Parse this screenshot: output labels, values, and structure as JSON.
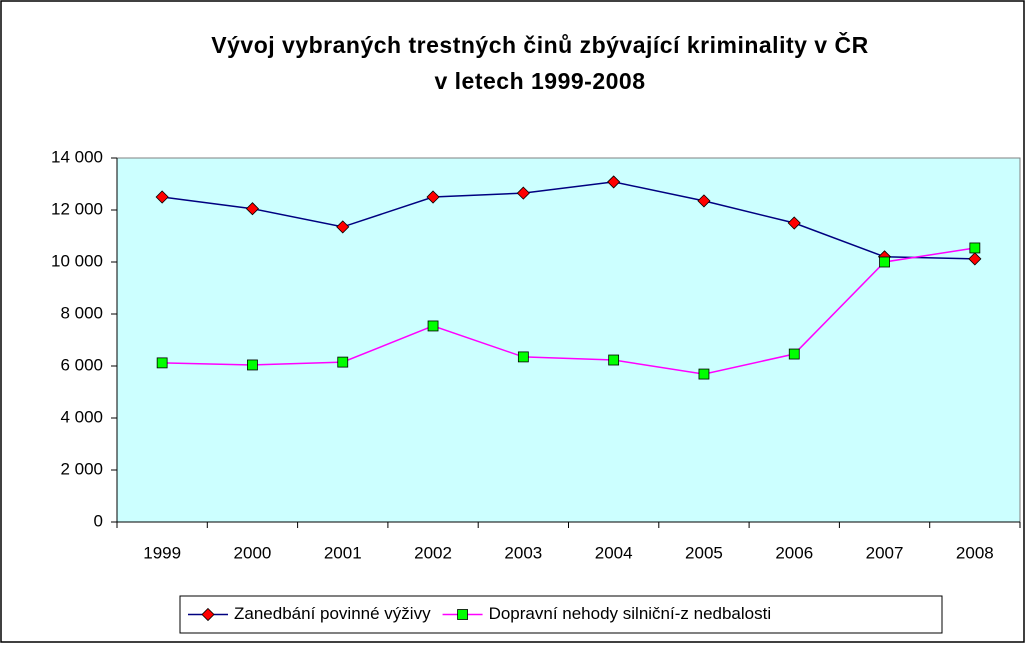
{
  "chart_data": {
    "type": "line",
    "title": [
      "Vývoj vybraných trestných činů zbývající kriminality v ČR",
      "v letech 1999-2008"
    ],
    "categories": [
      "1999",
      "2000",
      "2001",
      "2002",
      "2003",
      "2004",
      "2005",
      "2006",
      "2007",
      "2008"
    ],
    "series": [
      {
        "name": "Zanedbání povinné výživy",
        "color": "#000080",
        "marker_color": "#ff0000",
        "marker": "diamond",
        "values": [
          12500,
          12050,
          11350,
          12500,
          12650,
          13080,
          12350,
          11500,
          10200,
          10120
        ]
      },
      {
        "name": "Dopravní nehody silniční-z nedbalosti",
        "color": "#ff00ff",
        "marker_color": "#00ff00",
        "marker": "square",
        "values": [
          6120,
          6040,
          6150,
          7540,
          6350,
          6230,
          5690,
          6460,
          10000,
          10540
        ]
      }
    ],
    "ylim": [
      0,
      14000
    ],
    "yticks": [
      0,
      {
        "value": 2000,
        "label": "2 000"
      },
      {
        "value": 4000,
        "label": "4 000"
      },
      {
        "value": 6000,
        "label": "6 000"
      },
      {
        "value": 8000,
        "label": "8 000"
      },
      {
        "value": 10000,
        "label": "10 000"
      },
      {
        "value": 12000,
        "label": "12 000"
      },
      {
        "value": 14000,
        "label": "14 000"
      }
    ],
    "plot_background": "#ccffff",
    "legend": "bottom"
  }
}
